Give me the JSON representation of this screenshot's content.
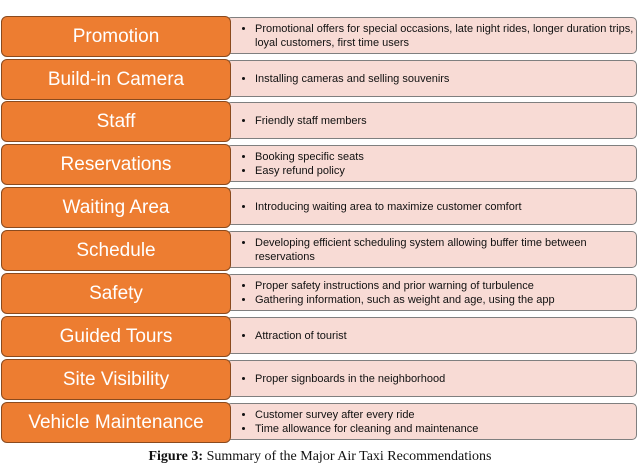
{
  "rows": [
    {
      "category": "Promotion",
      "items": [
        "Promotional offers for special occasions, late night rides, longer duration trips, loyal customers, first time users"
      ]
    },
    {
      "category": "Build-in Camera",
      "items": [
        "Installing cameras and selling souvenirs"
      ]
    },
    {
      "category": "Staff",
      "items": [
        "Friendly staff members"
      ]
    },
    {
      "category": "Reservations",
      "items": [
        "Booking specific seats",
        "Easy refund policy"
      ]
    },
    {
      "category": "Waiting Area",
      "items": [
        "Introducing waiting area to maximize customer comfort"
      ]
    },
    {
      "category": "Schedule",
      "items": [
        "Developing efficient scheduling system allowing buffer time between reservations"
      ]
    },
    {
      "category": "Safety",
      "items": [
        "Proper safety instructions and prior warning of turbulence",
        "Gathering information, such as weight and age, using the app"
      ]
    },
    {
      "category": "Guided Tours",
      "items": [
        "Attraction of tourist"
      ]
    },
    {
      "category": "Site Visibility",
      "items": [
        "Proper signboards in the neighborhood"
      ]
    },
    {
      "category": "Vehicle Maintenance",
      "items": [
        "Customer survey after every ride",
        "Time allowance for cleaning and maintenance"
      ]
    }
  ],
  "caption": {
    "label": "Figure 3:",
    "text": " Summary of the Major Air Taxi Recommendations"
  },
  "colors": {
    "category_fill": "#ed7d31",
    "description_fill": "#f8dbd5"
  }
}
